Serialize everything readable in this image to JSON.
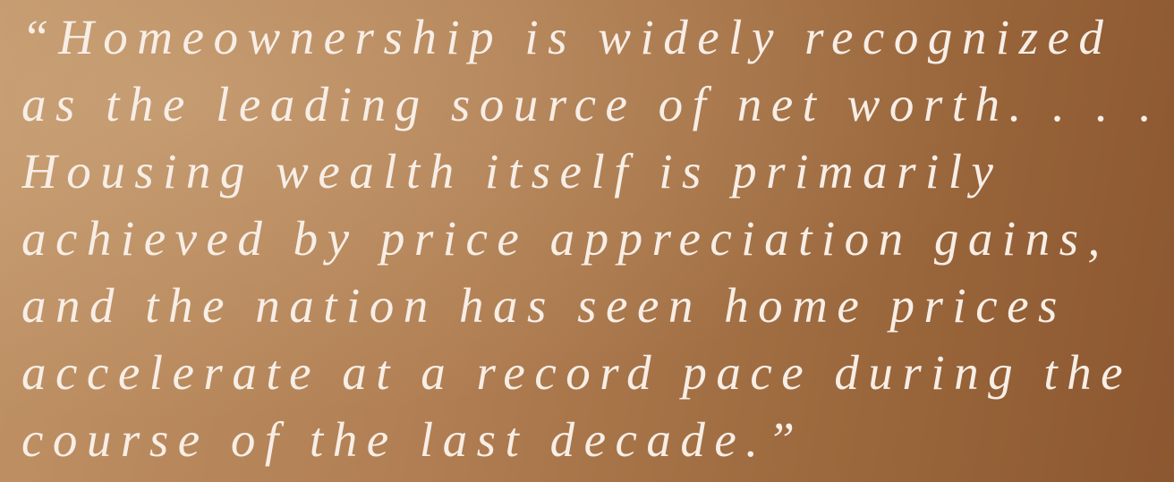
{
  "quote": {
    "lines": [
      "“Homeownership is widely recognized",
      "as the leading source of net worth. . . .",
      "Housing wealth itself is primarily",
      "achieved by price appreciation gains,",
      "and the nation has seen home prices",
      "accelerate at a record pace during the",
      "course of the last decade.”"
    ]
  }
}
